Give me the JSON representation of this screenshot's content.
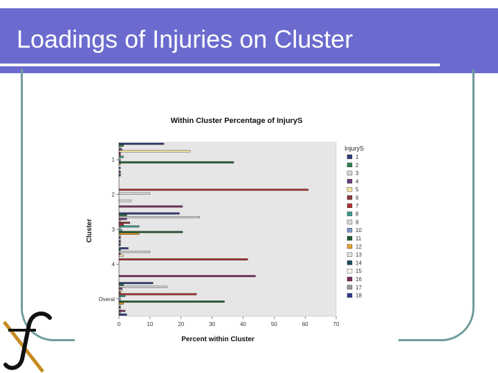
{
  "slide": {
    "title": "Loadings of Injuries on Cluster"
  },
  "colors": {
    "title_bar": "#6b6bcf",
    "frame": "#6f9c9c",
    "plot_bg": "#e6e6e6"
  },
  "chart_data": {
    "type": "bar",
    "orientation": "horizontal",
    "title": "Within Cluster Percentage of InjuryS",
    "xlabel": "Percent within Cluster",
    "ylabel": "Cluster",
    "xlim": [
      0,
      70
    ],
    "xticks": [
      "0",
      "10",
      "20",
      "30",
      "40",
      "50",
      "60",
      "70"
    ],
    "categories": [
      "1",
      "2",
      "3",
      "4",
      "Overall"
    ],
    "category_tick_labels": [
      "1",
      "2",
      "3",
      "4",
      "Overal"
    ],
    "legend_title": "InjuryS",
    "legend_position": "right",
    "grid": false,
    "series": [
      {
        "name": "1",
        "color": "#2d3a7a",
        "values": [
          14.5,
          0.0,
          19.5,
          3.0,
          11.0
        ]
      },
      {
        "name": "2",
        "color": "#2e7d4f",
        "values": [
          1.5,
          0.0,
          2.5,
          0.5,
          1.5
        ]
      },
      {
        "name": "3",
        "color": "#d8d8d8",
        "values": [
          0.5,
          0.0,
          26.0,
          10.0,
          15.5
        ]
      },
      {
        "name": "4",
        "color": "#6a3a7a",
        "values": [
          1.0,
          0.0,
          2.5,
          0.5,
          1.0
        ]
      },
      {
        "name": "5",
        "color": "#f2e6a0",
        "values": [
          23.0,
          0.0,
          0.5,
          1.5,
          1.0
        ]
      },
      {
        "name": "6",
        "color": "#8a3a3a",
        "values": [
          0.5,
          0.0,
          3.5,
          0.0,
          0.5
        ]
      },
      {
        "name": "7",
        "color": "#b03030",
        "values": [
          0.5,
          61.0,
          1.5,
          41.5,
          25.0
        ]
      },
      {
        "name": "8",
        "color": "#3a9a8a",
        "values": [
          1.5,
          0.0,
          6.5,
          0.0,
          2.0
        ]
      },
      {
        "name": "9",
        "color": "#dcdcdc",
        "values": [
          0.5,
          10.0,
          0.5,
          0.0,
          0.5
        ]
      },
      {
        "name": "10",
        "color": "#7a9ac8",
        "values": [
          0.5,
          0.0,
          1.0,
          0.0,
          0.5
        ]
      },
      {
        "name": "11",
        "color": "#1f5a2f",
        "values": [
          37.0,
          0.0,
          20.5,
          0.0,
          34.0
        ]
      },
      {
        "name": "12",
        "color": "#e8a030",
        "values": [
          0.5,
          0.0,
          6.5,
          0.0,
          1.5
        ]
      },
      {
        "name": "13",
        "color": "#e0e0e0",
        "values": [
          0.0,
          4.0,
          0.5,
          0.0,
          0.5
        ]
      },
      {
        "name": "14",
        "color": "#1f4a5a",
        "values": [
          0.5,
          0.0,
          0.5,
          0.0,
          0.5
        ]
      },
      {
        "name": "15",
        "color": "#f8f8f0",
        "values": [
          0.0,
          0.0,
          0.5,
          0.0,
          0.5
        ]
      },
      {
        "name": "16",
        "color": "#7a2a5a",
        "values": [
          0.5,
          20.5,
          0.5,
          44.0,
          2.0
        ]
      },
      {
        "name": "17",
        "color": "#9a9a9a",
        "values": [
          0.5,
          0.0,
          0.5,
          0.0,
          0.5
        ]
      },
      {
        "name": "18",
        "color": "#2e3a8a",
        "values": [
          0.5,
          0.0,
          0.5,
          0.0,
          2.5
        ]
      }
    ]
  }
}
